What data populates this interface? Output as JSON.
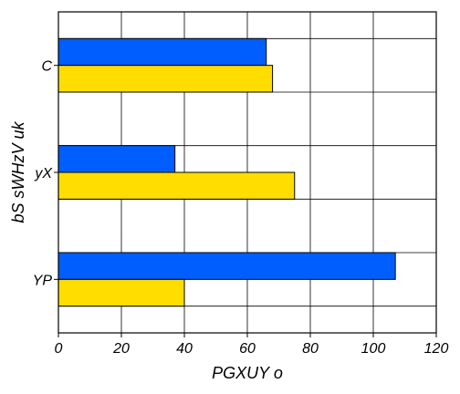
{
  "chart_data": {
    "type": "bar",
    "orientation": "horizontal",
    "categories": [
      "C",
      "yX",
      "YP"
    ],
    "series": [
      {
        "color": "#005eff",
        "values": [
          66,
          37,
          107
        ]
      },
      {
        "color": "#ffdd00",
        "values": [
          68,
          75,
          40
        ]
      }
    ],
    "xlabel": "PGXUY o",
    "ylabel": "bS sWHzV uk",
    "xlim": [
      0,
      120
    ],
    "xticks": [
      0,
      20,
      40,
      60,
      80,
      100,
      120
    ],
    "grid": true,
    "legend": false
  }
}
